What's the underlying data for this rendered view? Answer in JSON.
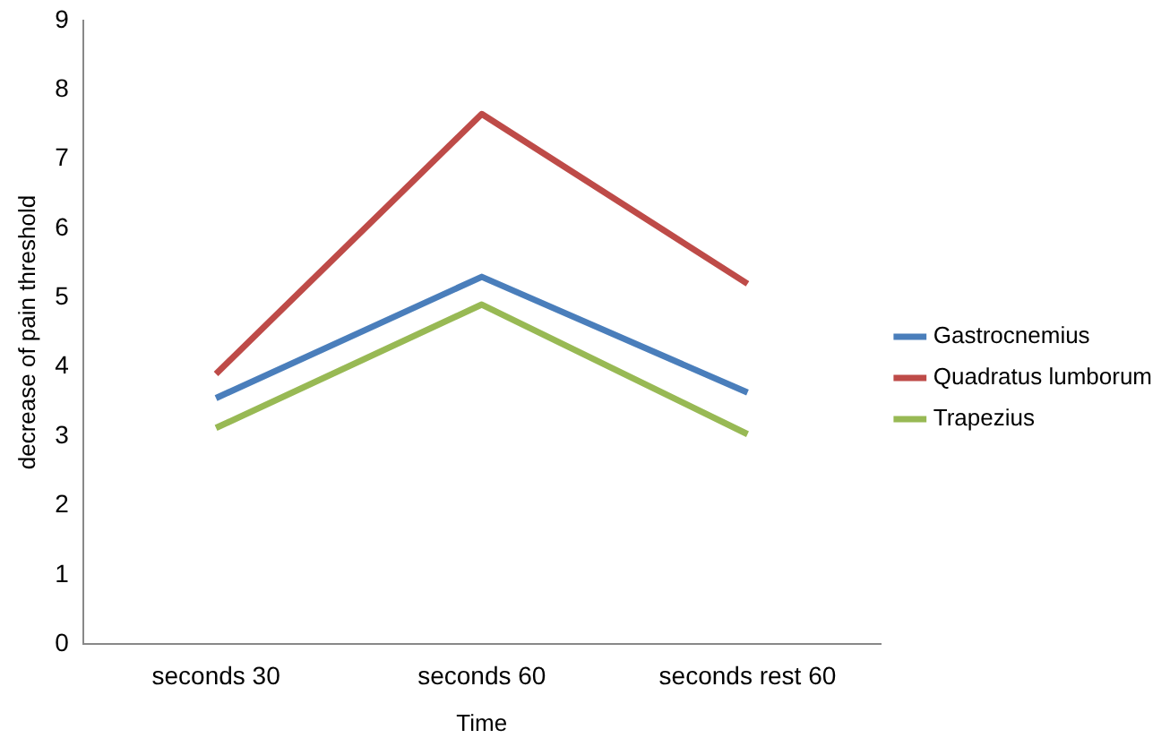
{
  "chart_data": {
    "type": "line",
    "xlabel": "Time",
    "ylabel": "decrease of pain threshold",
    "categories": [
      "seconds 30",
      "seconds 60",
      "seconds rest 60"
    ],
    "series": [
      {
        "name": "Gastrocnemius",
        "color": "#4a7ebb",
        "values": [
          3.55,
          5.3,
          3.63
        ]
      },
      {
        "name": "Quadratus lumborum",
        "color": "#be4b48",
        "values": [
          3.9,
          7.65,
          5.2
        ]
      },
      {
        "name": "Trapezius",
        "color": "#98b954",
        "values": [
          3.12,
          4.9,
          3.03
        ]
      }
    ],
    "ylim": [
      0,
      9
    ],
    "yticks": [
      0,
      1,
      2,
      3,
      4,
      5,
      6,
      7,
      8,
      9
    ],
    "grid": false,
    "legend": "right",
    "marker": "none",
    "line_style": "solid"
  }
}
